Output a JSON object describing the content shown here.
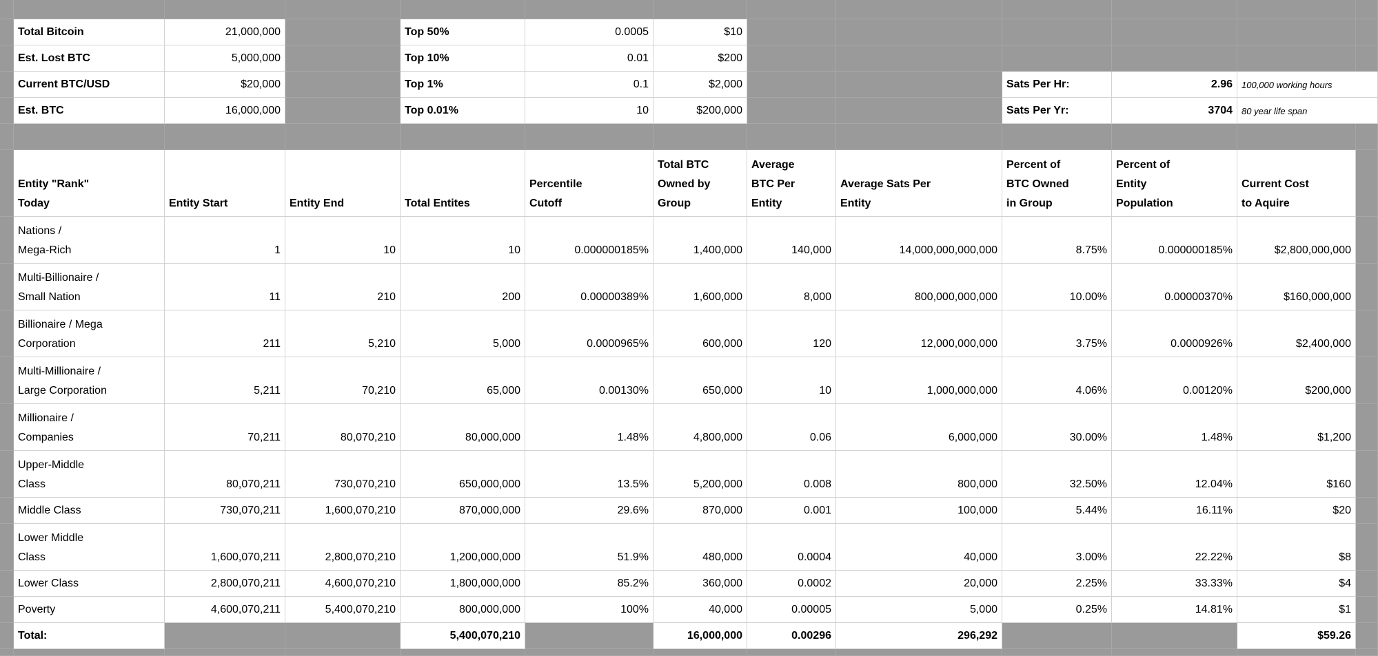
{
  "colors": {
    "sheet_background": "#9a9a9a",
    "cell_background": "#ffffff",
    "cell_gridline": "#d2d2d2",
    "background_gridline": "#a7a7a7",
    "text": "#000000"
  },
  "summary_left": {
    "rows": [
      {
        "label": "Total Bitcoin",
        "value": "21,000,000"
      },
      {
        "label": "Est. Lost BTC",
        "value": "5,000,000"
      },
      {
        "label": "Current BTC/USD",
        "value": "$20,000"
      },
      {
        "label": "Est. BTC",
        "value": "16,000,000"
      }
    ]
  },
  "percentile_summary": {
    "rows": [
      {
        "label": "Top 50%",
        "btc": "0.0005",
        "usd": "$10"
      },
      {
        "label": "Top 10%",
        "btc": "0.01",
        "usd": "$200"
      },
      {
        "label": "Top 1%",
        "btc": "0.1",
        "usd": "$2,000"
      },
      {
        "label": "Top 0.01%",
        "btc": "10",
        "usd": "$200,000"
      }
    ]
  },
  "sats_summary": {
    "rows": [
      {
        "label": "Sats Per Hr:",
        "value": "2.96",
        "note": "100,000 working hours"
      },
      {
        "label": "Sats Per Yr:",
        "value": "3704",
        "note": "80 year life span"
      }
    ]
  },
  "table": {
    "headers": [
      "Entity \"Rank\"\nToday",
      "Entity Start",
      "Entity End",
      "Total Entites",
      "Percentile\nCutoff",
      "Total BTC\nOwned by\nGroup",
      "Average\nBTC Per\nEntity",
      "Average Sats Per\nEntity",
      "Percent of\nBTC Owned\nin Group",
      "Percent of\nEntity\nPopulation",
      "Current Cost\nto Aquire"
    ],
    "rows": [
      {
        "name": "Nations /\nMega-Rich",
        "values": [
          "1",
          "10",
          "10",
          "0.000000185%",
          "1,400,000",
          "140,000",
          "14,000,000,000,000",
          "8.75%",
          "0.000000185%",
          "$2,800,000,000"
        ]
      },
      {
        "name": "Multi-Billionaire /\nSmall Nation",
        "values": [
          "11",
          "210",
          "200",
          "0.00000389%",
          "1,600,000",
          "8,000",
          "800,000,000,000",
          "10.00%",
          "0.00000370%",
          "$160,000,000"
        ]
      },
      {
        "name": "Billionaire / Mega\nCorporation",
        "values": [
          "211",
          "5,210",
          "5,000",
          "0.0000965%",
          "600,000",
          "120",
          "12,000,000,000",
          "3.75%",
          "0.0000926%",
          "$2,400,000"
        ]
      },
      {
        "name": "Multi-Millionaire /\nLarge Corporation",
        "values": [
          "5,211",
          "70,210",
          "65,000",
          "0.00130%",
          "650,000",
          "10",
          "1,000,000,000",
          "4.06%",
          "0.00120%",
          "$200,000"
        ]
      },
      {
        "name": "Millionaire /\nCompanies",
        "values": [
          "70,211",
          "80,070,210",
          "80,000,000",
          "1.48%",
          "4,800,000",
          "0.06",
          "6,000,000",
          "30.00%",
          "1.48%",
          "$1,200"
        ]
      },
      {
        "name": "Upper-Middle\nClass",
        "values": [
          "80,070,211",
          "730,070,210",
          "650,000,000",
          "13.5%",
          "5,200,000",
          "0.008",
          "800,000",
          "32.50%",
          "12.04%",
          "$160"
        ]
      },
      {
        "name": "Middle Class",
        "values": [
          "730,070,211",
          "1,600,070,210",
          "870,000,000",
          "29.6%",
          "870,000",
          "0.001",
          "100,000",
          "5.44%",
          "16.11%",
          "$20"
        ]
      },
      {
        "name": "Lower Middle\nClass",
        "values": [
          "1,600,070,211",
          "2,800,070,210",
          "1,200,000,000",
          "51.9%",
          "480,000",
          "0.0004",
          "40,000",
          "3.00%",
          "22.22%",
          "$8"
        ]
      },
      {
        "name": "Lower Class",
        "values": [
          "2,800,070,211",
          "4,600,070,210",
          "1,800,000,000",
          "85.2%",
          "360,000",
          "0.0002",
          "20,000",
          "2.25%",
          "33.33%",
          "$4"
        ]
      },
      {
        "name": "Poverty",
        "values": [
          "4,600,070,211",
          "5,400,070,210",
          "800,000,000",
          "100%",
          "40,000",
          "0.00005",
          "5,000",
          "0.25%",
          "14.81%",
          "$1"
        ]
      }
    ],
    "total_row": {
      "label": "Total:",
      "total_entities": "5,400,070,210",
      "total_btc_owned": "16,000,000",
      "average_btc": "0.00296",
      "average_sats": "296,292",
      "current_cost": "$59.26"
    }
  }
}
